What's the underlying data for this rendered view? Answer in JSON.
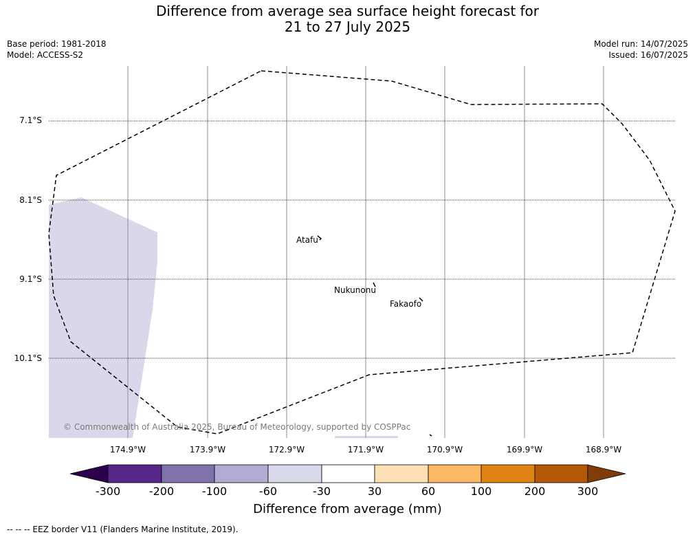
{
  "title": {
    "line1": "Difference from average sea surface height forecast for",
    "line2": "21 to 27 July 2025"
  },
  "meta": {
    "base_period": "Base period: 1981-2018",
    "model": "Model: ACCESS-S2",
    "model_run": "Model run: 14/07/2025",
    "issued": "Issued: 16/07/2025"
  },
  "map": {
    "lat_labels": [
      "7.1°S",
      "8.1°S",
      "9.1°S",
      "10.1°S"
    ],
    "lon_labels": [
      "174.9°W",
      "173.9°W",
      "172.9°W",
      "171.9°W",
      "170.9°W",
      "169.9°W",
      "168.9°W"
    ],
    "places": {
      "atafu": "Atafu",
      "nukunonu": "Nukunonu",
      "fakaofo": "Fakaofo"
    },
    "copyright": "© Commonwealth of Australia 2025, Bureau of Meteorology, supported by COSPPac",
    "anomaly_fill_color": "#d8d8ea"
  },
  "colorbar": {
    "ticks": [
      "-300",
      "-200",
      "-100",
      "-60",
      "-30",
      "30",
      "60",
      "100",
      "200",
      "300"
    ],
    "colors": [
      "#2d004b",
      "#542788",
      "#8073ac",
      "#b2abd2",
      "#d8daeb",
      "#ffffff",
      "#fee0b6",
      "#fdb863",
      "#e08214",
      "#b35806",
      "#7f3b08"
    ],
    "label": "Difference from average (mm)"
  },
  "footnote": "--  --  -- EEZ border V11 (Flanders Marine Institute, 2019)."
}
